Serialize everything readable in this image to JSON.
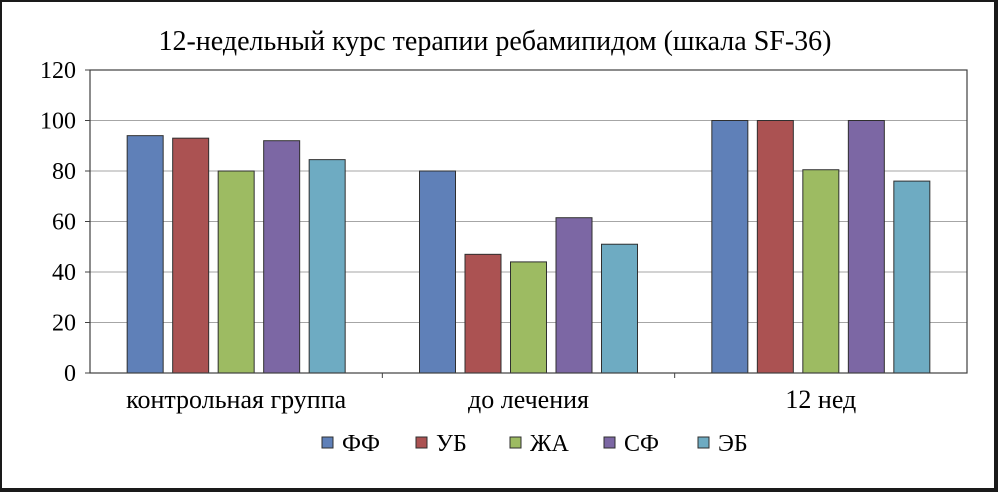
{
  "chart_data": {
    "type": "bar",
    "title": "12-недельный курс терапии ребамипидом (шкала SF-36)",
    "xlabel": "",
    "ylabel": "",
    "categories": [
      "контрольная группа",
      "до лечения",
      "12 нед"
    ],
    "series": [
      {
        "name": "ФФ",
        "color": "#5f80b8",
        "values": [
          94,
          80,
          100
        ]
      },
      {
        "name": "УБ",
        "color": "#ab5252",
        "values": [
          93,
          47,
          100
        ]
      },
      {
        "name": "ЖА",
        "color": "#9dbb62",
        "values": [
          80,
          44,
          80.5
        ]
      },
      {
        "name": "СФ",
        "color": "#7c67a4",
        "values": [
          92,
          61.5,
          100
        ]
      },
      {
        "name": "ЭБ",
        "color": "#6eabc2",
        "values": [
          84.5,
          51,
          76
        ]
      }
    ],
    "ylim": [
      0,
      120
    ],
    "yticks": [
      0,
      20,
      40,
      60,
      80,
      100,
      120
    ],
    "grid": true,
    "legend_position": "bottom"
  }
}
